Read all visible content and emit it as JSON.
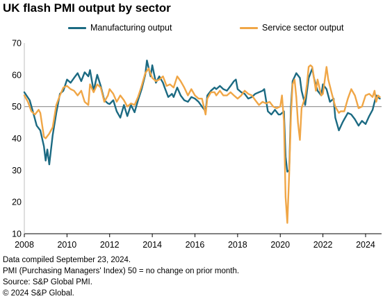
{
  "title": "UK flash PMI output by sector",
  "footnotes": [
    "Data compiled September 23, 2024.",
    "PMI (Purchasing Managers' Index) 50 = no change on prior month.",
    "Source: S&P Global PMI.",
    "© 2024 S&P Global."
  ],
  "colors": {
    "manufacturing": "#1b6a82",
    "services": "#f0a646",
    "reference": "#8c8c8c",
    "axis": "#000000"
  },
  "chart_data": {
    "type": "line",
    "title": "UK flash PMI output by sector",
    "xlabel": "",
    "ylabel": "",
    "xlim": [
      2008.0,
      2024.75
    ],
    "ylim": [
      10,
      70
    ],
    "y_ticks": [
      10,
      20,
      30,
      40,
      50,
      60,
      70
    ],
    "x_ticks": [
      2008,
      2010,
      2012,
      2014,
      2016,
      2018,
      2020,
      2022,
      2024
    ],
    "x_tick_labels": [
      "2008",
      "2010",
      "2012",
      "2014",
      "2016",
      "2018",
      "2020",
      "2022",
      "2024"
    ],
    "reference_line": 50,
    "grid": false,
    "legend_position": "top",
    "series": [
      {
        "name": "Manufacturing output",
        "color": "#1b6a82",
        "points": [
          [
            2008.0,
            54.5
          ],
          [
            2008.25,
            52
          ],
          [
            2008.42,
            48
          ],
          [
            2008.58,
            44
          ],
          [
            2008.75,
            42.5
          ],
          [
            2008.92,
            37.5
          ],
          [
            2009.0,
            33
          ],
          [
            2009.08,
            36.5
          ],
          [
            2009.17,
            31.8
          ],
          [
            2009.33,
            41
          ],
          [
            2009.5,
            48
          ],
          [
            2009.67,
            54
          ],
          [
            2009.83,
            55
          ],
          [
            2010.0,
            58.5
          ],
          [
            2010.17,
            57.5
          ],
          [
            2010.33,
            59
          ],
          [
            2010.5,
            60.5
          ],
          [
            2010.67,
            58
          ],
          [
            2010.83,
            60.8
          ],
          [
            2011.0,
            59.5
          ],
          [
            2011.08,
            61.5
          ],
          [
            2011.25,
            55
          ],
          [
            2011.42,
            60
          ],
          [
            2011.58,
            56.5
          ],
          [
            2011.75,
            52
          ],
          [
            2011.92,
            51
          ],
          [
            2012.0,
            50.8
          ],
          [
            2012.17,
            52
          ],
          [
            2012.33,
            48.5
          ],
          [
            2012.5,
            46.5
          ],
          [
            2012.67,
            50.5
          ],
          [
            2012.83,
            47
          ],
          [
            2013.0,
            50.5
          ],
          [
            2013.17,
            48.2
          ],
          [
            2013.33,
            52
          ],
          [
            2013.5,
            55.5
          ],
          [
            2013.67,
            60
          ],
          [
            2013.75,
            64.5
          ],
          [
            2013.92,
            59.5
          ],
          [
            2014.0,
            63
          ],
          [
            2014.17,
            57.5
          ],
          [
            2014.33,
            59.5
          ],
          [
            2014.5,
            57.5
          ],
          [
            2014.58,
            56
          ],
          [
            2014.75,
            53
          ],
          [
            2014.92,
            54
          ],
          [
            2015.0,
            53
          ],
          [
            2015.17,
            56
          ],
          [
            2015.33,
            53.5
          ],
          [
            2015.5,
            52
          ],
          [
            2015.67,
            51.5
          ],
          [
            2015.83,
            53
          ],
          [
            2016.0,
            52.5
          ],
          [
            2016.17,
            51.5
          ],
          [
            2016.33,
            50
          ],
          [
            2016.5,
            48.5
          ],
          [
            2016.58,
            53.5
          ],
          [
            2016.75,
            55
          ],
          [
            2016.92,
            56
          ],
          [
            2017.0,
            55.5
          ],
          [
            2017.17,
            56.5
          ],
          [
            2017.33,
            55.5
          ],
          [
            2017.5,
            55
          ],
          [
            2017.67,
            56.5
          ],
          [
            2017.83,
            58
          ],
          [
            2017.92,
            58.5
          ],
          [
            2018.0,
            55.5
          ],
          [
            2018.17,
            54.5
          ],
          [
            2018.33,
            54
          ],
          [
            2018.5,
            52.5
          ],
          [
            2018.67,
            53
          ],
          [
            2018.83,
            54
          ],
          [
            2019.0,
            54.5
          ],
          [
            2019.17,
            55
          ],
          [
            2019.25,
            55.5
          ],
          [
            2019.42,
            48.5
          ],
          [
            2019.58,
            47.5
          ],
          [
            2019.75,
            49
          ],
          [
            2019.92,
            47.5
          ],
          [
            2020.0,
            47.5
          ],
          [
            2020.17,
            48.5
          ],
          [
            2020.25,
            34.2
          ],
          [
            2020.33,
            29.5
          ],
          [
            2020.42,
            30
          ],
          [
            2020.5,
            50
          ],
          [
            2020.58,
            58
          ],
          [
            2020.75,
            60.5
          ],
          [
            2020.92,
            59
          ],
          [
            2021.0,
            55
          ],
          [
            2021.17,
            50.5
          ],
          [
            2021.33,
            59
          ],
          [
            2021.5,
            62
          ],
          [
            2021.58,
            59
          ],
          [
            2021.75,
            55
          ],
          [
            2021.92,
            53.5
          ],
          [
            2022.0,
            57
          ],
          [
            2022.17,
            55.5
          ],
          [
            2022.33,
            51.5
          ],
          [
            2022.5,
            52.5
          ],
          [
            2022.58,
            46.5
          ],
          [
            2022.75,
            42.5
          ],
          [
            2022.92,
            45
          ],
          [
            2023.0,
            46
          ],
          [
            2023.17,
            48
          ],
          [
            2023.33,
            47.5
          ],
          [
            2023.5,
            46
          ],
          [
            2023.67,
            44
          ],
          [
            2023.83,
            45.5
          ],
          [
            2024.0,
            44.5
          ],
          [
            2024.17,
            47
          ],
          [
            2024.33,
            49
          ],
          [
            2024.5,
            53.5
          ],
          [
            2024.58,
            53
          ],
          [
            2024.67,
            52.5
          ]
        ]
      },
      {
        "name": "Service sector output",
        "color": "#f0a646",
        "points": [
          [
            2008.0,
            53.5
          ],
          [
            2008.17,
            51.5
          ],
          [
            2008.33,
            48.5
          ],
          [
            2008.5,
            47.5
          ],
          [
            2008.67,
            49
          ],
          [
            2008.75,
            48
          ],
          [
            2008.92,
            40.5
          ],
          [
            2009.0,
            40
          ],
          [
            2009.17,
            41.5
          ],
          [
            2009.33,
            43.5
          ],
          [
            2009.5,
            50.5
          ],
          [
            2009.67,
            53.5
          ],
          [
            2009.83,
            56
          ],
          [
            2010.0,
            56.5
          ],
          [
            2010.17,
            55.5
          ],
          [
            2010.33,
            55
          ],
          [
            2010.5,
            53.5
          ],
          [
            2010.67,
            55
          ],
          [
            2010.83,
            51.5
          ],
          [
            2011.0,
            50.5
          ],
          [
            2011.08,
            57
          ],
          [
            2011.25,
            54.5
          ],
          [
            2011.42,
            57
          ],
          [
            2011.58,
            56
          ],
          [
            2011.75,
            51.5
          ],
          [
            2011.92,
            53.5
          ],
          [
            2012.0,
            55.5
          ],
          [
            2012.17,
            54
          ],
          [
            2012.33,
            51.5
          ],
          [
            2012.5,
            53.5
          ],
          [
            2012.67,
            52
          ],
          [
            2012.83,
            50
          ],
          [
            2013.0,
            51
          ],
          [
            2013.17,
            50.5
          ],
          [
            2013.33,
            53
          ],
          [
            2013.5,
            56.5
          ],
          [
            2013.67,
            60.5
          ],
          [
            2013.83,
            62
          ],
          [
            2014.0,
            59
          ],
          [
            2014.17,
            58
          ],
          [
            2014.33,
            58.5
          ],
          [
            2014.5,
            59.5
          ],
          [
            2014.67,
            56.5
          ],
          [
            2014.83,
            57
          ],
          [
            2015.0,
            56
          ],
          [
            2015.17,
            59.5
          ],
          [
            2015.33,
            58
          ],
          [
            2015.5,
            56
          ],
          [
            2015.67,
            53.5
          ],
          [
            2015.83,
            55.5
          ],
          [
            2016.0,
            53.5
          ],
          [
            2016.17,
            52.5
          ],
          [
            2016.33,
            52.5
          ],
          [
            2016.5,
            47.5
          ],
          [
            2016.58,
            52.5
          ],
          [
            2016.75,
            54.5
          ],
          [
            2016.92,
            54.5
          ],
          [
            2017.0,
            53.5
          ],
          [
            2017.17,
            55
          ],
          [
            2017.33,
            53.5
          ],
          [
            2017.5,
            53.5
          ],
          [
            2017.67,
            54.5
          ],
          [
            2017.83,
            53.5
          ],
          [
            2018.0,
            52.5
          ],
          [
            2018.17,
            53.5
          ],
          [
            2018.33,
            55
          ],
          [
            2018.5,
            54
          ],
          [
            2018.67,
            53.5
          ],
          [
            2018.83,
            52
          ],
          [
            2019.0,
            50.5
          ],
          [
            2019.17,
            51.5
          ],
          [
            2019.33,
            51
          ],
          [
            2019.5,
            51.5
          ],
          [
            2019.67,
            50
          ],
          [
            2019.83,
            49.5
          ],
          [
            2020.0,
            50
          ],
          [
            2020.08,
            53.5
          ],
          [
            2020.17,
            45.5
          ],
          [
            2020.25,
            21.5
          ],
          [
            2020.33,
            13.4
          ],
          [
            2020.42,
            29
          ],
          [
            2020.5,
            47
          ],
          [
            2020.58,
            57
          ],
          [
            2020.67,
            58.5
          ],
          [
            2020.75,
            53
          ],
          [
            2020.83,
            45
          ],
          [
            2020.92,
            39.5
          ],
          [
            2021.0,
            49.5
          ],
          [
            2021.17,
            53
          ],
          [
            2021.25,
            57
          ],
          [
            2021.33,
            62.5
          ],
          [
            2021.42,
            63
          ],
          [
            2021.5,
            62.5
          ],
          [
            2021.67,
            55
          ],
          [
            2021.75,
            58.5
          ],
          [
            2021.92,
            53.5
          ],
          [
            2022.0,
            54
          ],
          [
            2022.17,
            62.5
          ],
          [
            2022.25,
            58.5
          ],
          [
            2022.42,
            54
          ],
          [
            2022.58,
            50
          ],
          [
            2022.75,
            48
          ],
          [
            2022.83,
            48.5
          ],
          [
            2023.0,
            48.5
          ],
          [
            2023.17,
            52.5
          ],
          [
            2023.33,
            55.5
          ],
          [
            2023.5,
            53.5
          ],
          [
            2023.67,
            49.5
          ],
          [
            2023.83,
            50
          ],
          [
            2024.0,
            53.5
          ],
          [
            2024.17,
            54
          ],
          [
            2024.33,
            53
          ],
          [
            2024.42,
            55
          ],
          [
            2024.5,
            51.5
          ],
          [
            2024.58,
            53.5
          ],
          [
            2024.67,
            53
          ]
        ]
      }
    ]
  }
}
